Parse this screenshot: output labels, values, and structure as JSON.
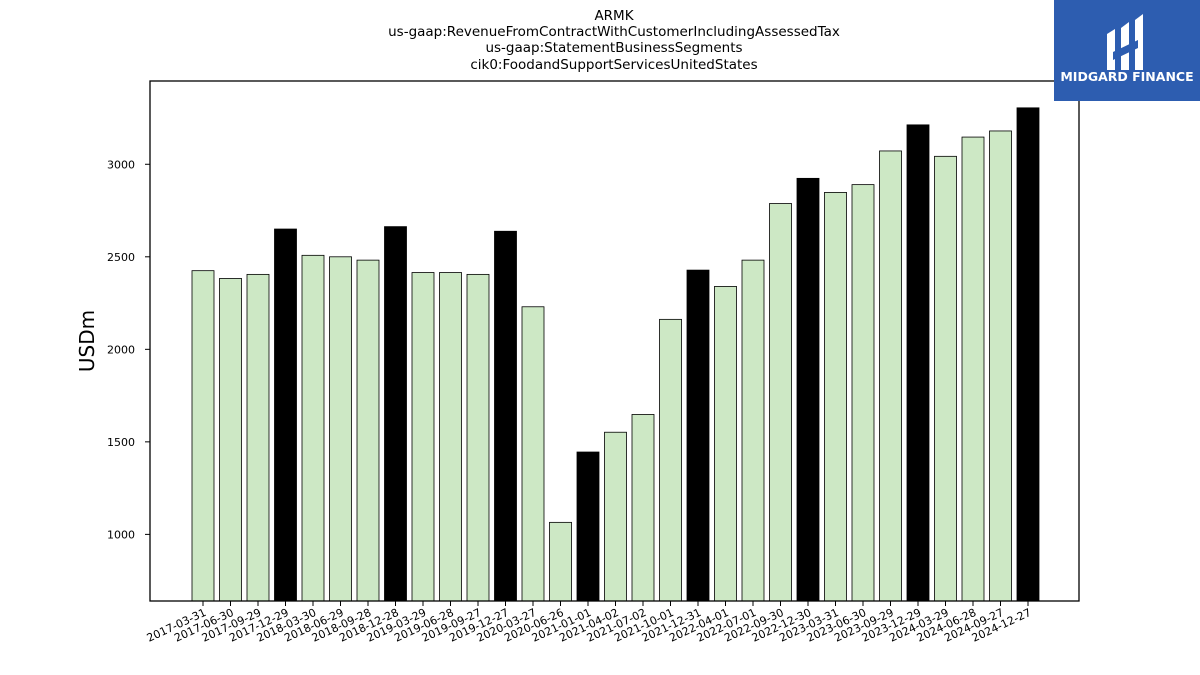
{
  "chart_data": {
    "type": "bar",
    "title": [
      "ARMK",
      "us-gaap:RevenueFromContractWithCustomerIncludingAssessedTax",
      "us-gaap:StatementBusinessSegments",
      "cik0:FoodandSupportServicesUnitedStates"
    ],
    "ylabel": "USDm",
    "xlabel": "",
    "ylim": [
      640,
      3450
    ],
    "yticks": [
      1000,
      1500,
      2000,
      2500,
      3000
    ],
    "grid": false,
    "categories": [
      "2017-03-31",
      "2017-06-30",
      "2017-09-29",
      "2017-12-29",
      "2018-03-30",
      "2018-06-29",
      "2018-09-28",
      "2018-12-28",
      "2019-03-29",
      "2019-06-28",
      "2019-09-27",
      "2019-12-27",
      "2020-03-27",
      "2020-06-26",
      "2021-01-01",
      "2021-04-02",
      "2021-07-02",
      "2021-10-01",
      "2021-12-31",
      "2022-04-01",
      "2022-07-01",
      "2022-09-30",
      "2022-12-30",
      "2023-03-31",
      "2023-06-30",
      "2023-09-29",
      "2023-12-29",
      "2024-03-29",
      "2024-06-28",
      "2024-09-27",
      "2024-12-27"
    ],
    "values": [
      2425,
      2383,
      2405,
      2650,
      2508,
      2500,
      2482,
      2663,
      2415,
      2415,
      2405,
      2638,
      2230,
      1065,
      1445,
      1552,
      1648,
      2162,
      2428,
      2340,
      2482,
      2788,
      2924,
      2848,
      2890,
      3072,
      3213,
      3043,
      3147,
      3180,
      3305
    ],
    "highlight": [
      false,
      false,
      false,
      true,
      false,
      false,
      false,
      true,
      false,
      false,
      false,
      true,
      false,
      false,
      true,
      false,
      false,
      false,
      true,
      false,
      false,
      false,
      true,
      false,
      false,
      false,
      true,
      false,
      false,
      false,
      true
    ],
    "colors": {
      "normal": "#cde8c5",
      "highlight": "#000000",
      "edge": "#000000"
    }
  },
  "logo": {
    "text": "MIDGARD FINANCE",
    "background": "#2d5db0",
    "icon": "midgard-logo-icon"
  }
}
